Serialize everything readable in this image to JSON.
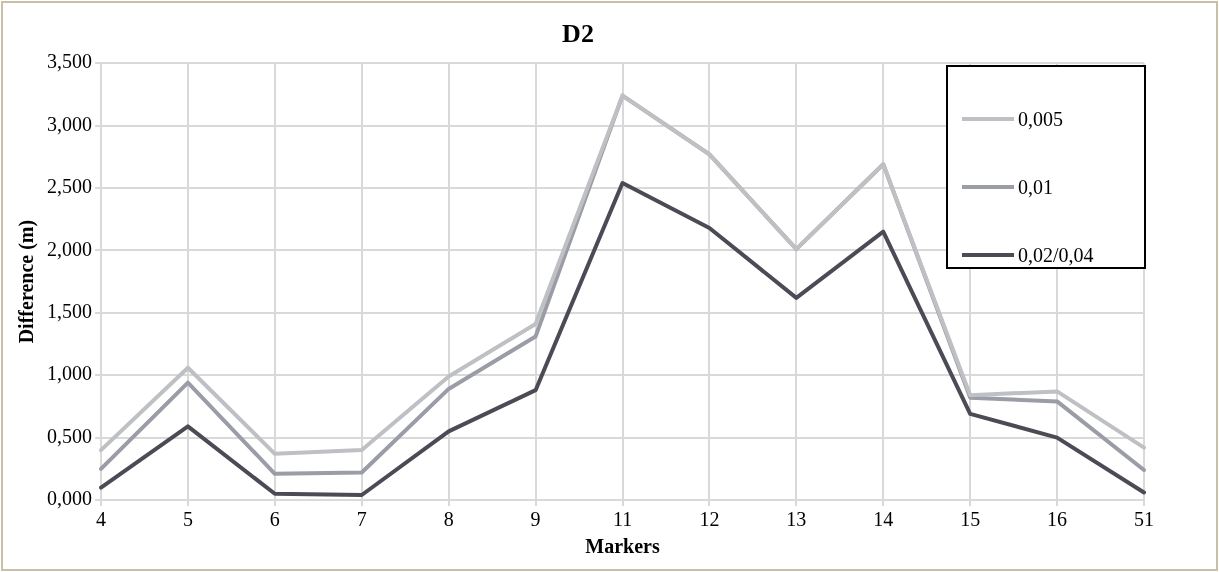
{
  "chart_data": {
    "type": "line",
    "title": "D2",
    "xlabel": "Markers",
    "ylabel": "Difference (m)",
    "categories": [
      "4",
      "5",
      "6",
      "7",
      "8",
      "9",
      "11",
      "12",
      "13",
      "14",
      "15",
      "16",
      "51"
    ],
    "series": [
      {
        "name": "0,005",
        "color": "#bfc0c4",
        "values": [
          0.4,
          1.06,
          0.37,
          0.4,
          0.99,
          1.41,
          3.24,
          2.77,
          2.01,
          2.69,
          0.84,
          0.87,
          0.42
        ]
      },
      {
        "name": "0,01",
        "color": "#9a9ca6",
        "values": [
          0.25,
          0.94,
          0.21,
          0.22,
          0.89,
          1.31,
          3.24,
          2.77,
          2.01,
          2.69,
          0.82,
          0.79,
          0.24
        ]
      },
      {
        "name": "0,02/0,04",
        "color": "#4a4b55",
        "values": [
          0.1,
          0.59,
          0.05,
          0.04,
          0.55,
          0.88,
          2.54,
          2.18,
          1.62,
          2.15,
          0.69,
          0.5,
          0.06
        ]
      }
    ],
    "ylim": [
      0,
      3.5
    ],
    "yticks": [
      {
        "value": 0,
        "label": "0,000"
      },
      {
        "value": 0.5,
        "label": "0,500"
      },
      {
        "value": 1,
        "label": "1,000"
      },
      {
        "value": 1.5,
        "label": "1,500"
      },
      {
        "value": 2,
        "label": "2,000"
      },
      {
        "value": 2.5,
        "label": "2,500"
      },
      {
        "value": 3,
        "label": "3,000"
      },
      {
        "value": 3.5,
        "label": "3,500"
      }
    ],
    "grid": true,
    "legend": "top right",
    "marker": "none",
    "line_style": "solid"
  }
}
